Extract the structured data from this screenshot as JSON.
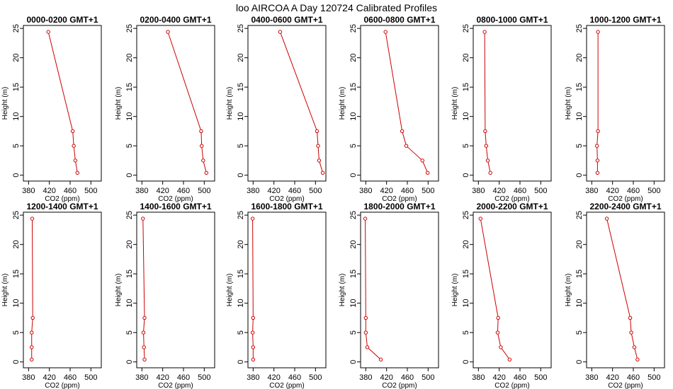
{
  "figure": {
    "title": "loo AIRCOA A  Day 120724  Calibrated Profiles"
  },
  "colors": {
    "series": "#cc0000",
    "axis": "#000000"
  },
  "chart_data": [
    {
      "type": "line",
      "title": "0000-0200 GMT+1",
      "xlabel": "CO2 (ppm)",
      "ylabel": "Height (m)",
      "xlim": [
        370,
        520
      ],
      "ylim": [
        -1,
        25.5
      ],
      "xticks": [
        380,
        420,
        460,
        500
      ],
      "yticks": [
        0,
        5,
        10,
        15,
        20,
        25
      ],
      "grid": false,
      "points": [
        {
          "x": 418,
          "y": 24.4
        },
        {
          "x": 465,
          "y": 7.5
        },
        {
          "x": 467,
          "y": 5.0
        },
        {
          "x": 470,
          "y": 2.5
        },
        {
          "x": 474,
          "y": 0.4
        }
      ]
    },
    {
      "type": "line",
      "title": "0200-0400 GMT+1",
      "xlabel": "CO2 (ppm)",
      "ylabel": "Height (m)",
      "xlim": [
        370,
        520
      ],
      "ylim": [
        -1,
        25.5
      ],
      "xticks": [
        380,
        420,
        460,
        500
      ],
      "yticks": [
        0,
        5,
        10,
        15,
        20,
        25
      ],
      "grid": false,
      "points": [
        {
          "x": 430,
          "y": 24.4
        },
        {
          "x": 494,
          "y": 7.5
        },
        {
          "x": 495,
          "y": 5.0
        },
        {
          "x": 498,
          "y": 2.5
        },
        {
          "x": 504,
          "y": 0.4
        }
      ]
    },
    {
      "type": "line",
      "title": "0400-0600 GMT+1",
      "xlabel": "CO2 (ppm)",
      "ylabel": "Height (m)",
      "xlim": [
        370,
        520
      ],
      "ylim": [
        -1,
        25.5
      ],
      "xticks": [
        380,
        420,
        460,
        500
      ],
      "yticks": [
        0,
        5,
        10,
        15,
        20,
        25
      ],
      "grid": false,
      "points": [
        {
          "x": 432,
          "y": 24.4
        },
        {
          "x": 503,
          "y": 7.5
        },
        {
          "x": 505,
          "y": 5.0
        },
        {
          "x": 507,
          "y": 2.5
        },
        {
          "x": 514,
          "y": 0.4
        }
      ]
    },
    {
      "type": "line",
      "title": "0600-0800 GMT+1",
      "xlabel": "CO2 (ppm)",
      "ylabel": "Height (m)",
      "xlim": [
        370,
        520
      ],
      "ylim": [
        -1,
        25.5
      ],
      "xticks": [
        380,
        420,
        460,
        500
      ],
      "yticks": [
        0,
        5,
        10,
        15,
        20,
        25
      ],
      "grid": false,
      "points": [
        {
          "x": 418,
          "y": 24.4
        },
        {
          "x": 450,
          "y": 7.5
        },
        {
          "x": 458,
          "y": 5.0
        },
        {
          "x": 489,
          "y": 2.5
        },
        {
          "x": 499,
          "y": 0.4
        }
      ]
    },
    {
      "type": "line",
      "title": "0800-1000 GMT+1",
      "xlabel": "CO2 (ppm)",
      "ylabel": "Height (m)",
      "xlim": [
        370,
        520
      ],
      "ylim": [
        -1,
        25.5
      ],
      "xticks": [
        380,
        420,
        460,
        500
      ],
      "yticks": [
        0,
        5,
        10,
        15,
        20,
        25
      ],
      "grid": false,
      "points": [
        {
          "x": 392,
          "y": 24.4
        },
        {
          "x": 393,
          "y": 7.5
        },
        {
          "x": 395,
          "y": 5.0
        },
        {
          "x": 398,
          "y": 2.5
        },
        {
          "x": 403,
          "y": 0.4
        }
      ]
    },
    {
      "type": "line",
      "title": "1000-1200 GMT+1",
      "xlabel": "CO2 (ppm)",
      "ylabel": "Height (m)",
      "xlim": [
        370,
        520
      ],
      "ylim": [
        -1,
        25.5
      ],
      "xticks": [
        380,
        420,
        460,
        500
      ],
      "yticks": [
        0,
        5,
        10,
        15,
        20,
        25
      ],
      "grid": false,
      "points": [
        {
          "x": 392,
          "y": 24.4
        },
        {
          "x": 392,
          "y": 7.5
        },
        {
          "x": 390,
          "y": 5.0
        },
        {
          "x": 391,
          "y": 2.5
        },
        {
          "x": 391,
          "y": 0.4
        }
      ]
    },
    {
      "type": "line",
      "title": "1200-1400 GMT+1",
      "xlabel": "CO2 (ppm)",
      "ylabel": "Height (m)",
      "xlim": [
        370,
        520
      ],
      "ylim": [
        -1,
        25.5
      ],
      "xticks": [
        380,
        420,
        460,
        500
      ],
      "yticks": [
        0,
        5,
        10,
        15,
        20,
        25
      ],
      "grid": false,
      "points": [
        {
          "x": 387,
          "y": 24.4
        },
        {
          "x": 388,
          "y": 7.5
        },
        {
          "x": 386,
          "y": 5.0
        },
        {
          "x": 386,
          "y": 2.5
        },
        {
          "x": 386,
          "y": 0.4
        }
      ]
    },
    {
      "type": "line",
      "title": "1400-1600 GMT+1",
      "xlabel": "CO2 (ppm)",
      "ylabel": "Height (m)",
      "xlim": [
        370,
        520
      ],
      "ylim": [
        -1,
        25.5
      ],
      "xticks": [
        380,
        420,
        460,
        500
      ],
      "yticks": [
        0,
        5,
        10,
        15,
        20,
        25
      ],
      "grid": false,
      "points": [
        {
          "x": 382,
          "y": 24.4
        },
        {
          "x": 385,
          "y": 7.5
        },
        {
          "x": 383,
          "y": 5.0
        },
        {
          "x": 384,
          "y": 2.5
        },
        {
          "x": 385,
          "y": 0.4
        }
      ]
    },
    {
      "type": "line",
      "title": "1600-1800 GMT+1",
      "xlabel": "CO2 (ppm)",
      "ylabel": "Height (m)",
      "xlim": [
        370,
        520
      ],
      "ylim": [
        -1,
        25.5
      ],
      "xticks": [
        380,
        420,
        460,
        500
      ],
      "yticks": [
        0,
        5,
        10,
        15,
        20,
        25
      ],
      "grid": false,
      "points": [
        {
          "x": 379,
          "y": 24.4
        },
        {
          "x": 380,
          "y": 7.5
        },
        {
          "x": 379,
          "y": 5.0
        },
        {
          "x": 380,
          "y": 2.5
        },
        {
          "x": 380,
          "y": 0.4
        }
      ]
    },
    {
      "type": "line",
      "title": "1800-2000 GMT+1",
      "xlabel": "CO2 (ppm)",
      "ylabel": "Height (m)",
      "xlim": [
        370,
        520
      ],
      "ylim": [
        -1,
        25.5
      ],
      "xticks": [
        380,
        420,
        460,
        500
      ],
      "yticks": [
        0,
        5,
        10,
        15,
        20,
        25
      ],
      "grid": false,
      "points": [
        {
          "x": 379,
          "y": 24.4
        },
        {
          "x": 380,
          "y": 7.5
        },
        {
          "x": 380,
          "y": 5.0
        },
        {
          "x": 383,
          "y": 2.5
        },
        {
          "x": 409,
          "y": 0.4
        }
      ]
    },
    {
      "type": "line",
      "title": "2000-2200 GMT+1",
      "xlabel": "CO2 (ppm)",
      "ylabel": "Height (m)",
      "xlim": [
        370,
        520
      ],
      "ylim": [
        -1,
        25.5
      ],
      "xticks": [
        380,
        420,
        460,
        500
      ],
      "yticks": [
        0,
        5,
        10,
        15,
        20,
        25
      ],
      "grid": false,
      "points": [
        {
          "x": 384,
          "y": 24.4
        },
        {
          "x": 418,
          "y": 7.5
        },
        {
          "x": 417,
          "y": 5.0
        },
        {
          "x": 423,
          "y": 2.5
        },
        {
          "x": 440,
          "y": 0.4
        }
      ]
    },
    {
      "type": "line",
      "title": "2200-2400 GMT+1",
      "xlabel": "CO2 (ppm)",
      "ylabel": "Height (m)",
      "xlim": [
        370,
        520
      ],
      "ylim": [
        -1,
        25.5
      ],
      "xticks": [
        380,
        420,
        460,
        500
      ],
      "yticks": [
        0,
        5,
        10,
        15,
        20,
        25
      ],
      "grid": false,
      "points": [
        {
          "x": 409,
          "y": 24.4
        },
        {
          "x": 454,
          "y": 7.5
        },
        {
          "x": 456,
          "y": 5.0
        },
        {
          "x": 462,
          "y": 2.5
        },
        {
          "x": 468,
          "y": 0.4
        }
      ]
    }
  ]
}
